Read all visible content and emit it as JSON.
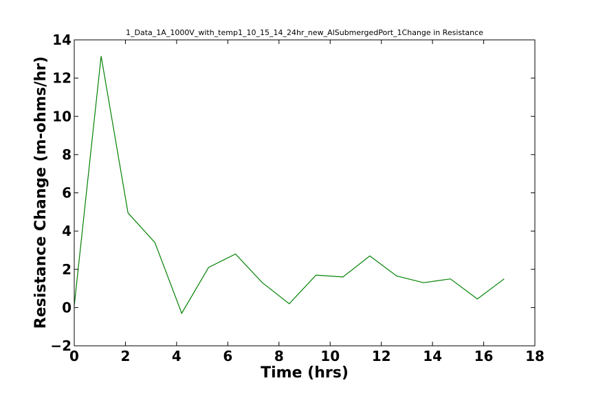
{
  "chart_data": {
    "type": "line",
    "title": "1_Data_1A_1000V_with_temp1_10_15_14_24hr_new_AlSubmergedPort_1Change in Resistance",
    "xlabel": "Time (hrs)",
    "ylabel": "Resistance Change (m-ohms/hr)",
    "xlim": [
      0,
      18
    ],
    "ylim": [
      -2,
      14
    ],
    "xticks": [
      0,
      2,
      4,
      6,
      8,
      10,
      12,
      14,
      16,
      18
    ],
    "yticks": [
      -2,
      0,
      2,
      4,
      6,
      8,
      10,
      12,
      14
    ],
    "xtick_labels": [
      "0",
      "2",
      "4",
      "6",
      "8",
      "10",
      "12",
      "14",
      "16",
      "18"
    ],
    "ytick_labels": [
      "−2",
      "0",
      "2",
      "4",
      "6",
      "8",
      "10",
      "12",
      "14"
    ],
    "grid": false,
    "series": [
      {
        "color": "#008000",
        "x": [
          0.0,
          1.05,
          2.1,
          3.15,
          4.2,
          5.25,
          6.3,
          7.35,
          8.4,
          9.45,
          10.5,
          11.55,
          12.6,
          13.65,
          14.7,
          15.75,
          16.8
        ],
        "y": [
          0.1,
          13.15,
          4.95,
          3.4,
          -0.3,
          2.1,
          2.8,
          1.3,
          0.2,
          1.7,
          1.6,
          2.7,
          1.65,
          1.3,
          1.5,
          0.45,
          1.5
        ]
      }
    ]
  }
}
